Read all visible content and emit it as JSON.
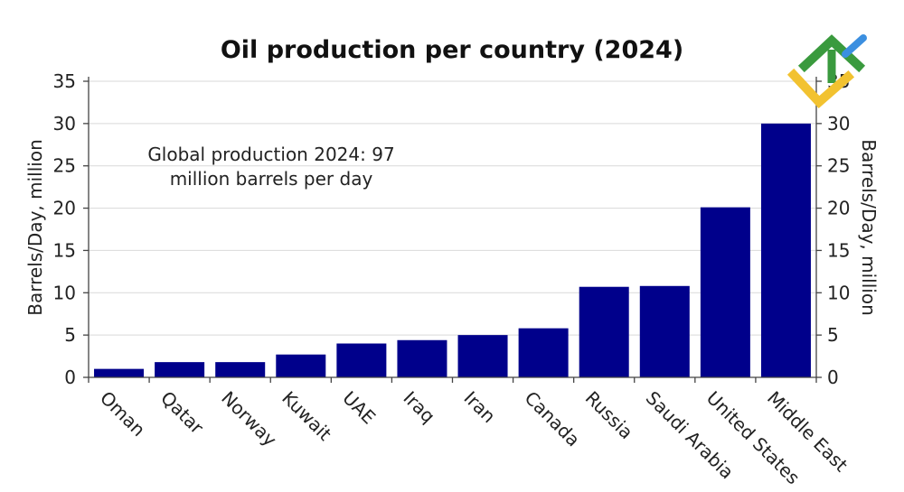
{
  "chart_data": {
    "type": "bar",
    "title": "Oil production per country (2024)",
    "ylabel": "Barrels/Day, million",
    "ylabel_right": "Barrels/Day, million",
    "categories": [
      "Oman",
      "Qatar",
      "Norway",
      "Kuwait",
      "UAE",
      "Iraq",
      "Iran",
      "Canada",
      "Russia",
      "Saudi Arabia",
      "United States",
      "Middle East"
    ],
    "values": [
      1.0,
      1.8,
      1.8,
      2.7,
      4.0,
      4.4,
      5.0,
      5.8,
      10.7,
      10.8,
      20.1,
      30.0
    ],
    "ylim": [
      0,
      35
    ],
    "yticks": [
      0,
      5,
      10,
      15,
      20,
      25,
      30,
      35
    ],
    "grid": true,
    "bar_color": "#00008b",
    "annotation": {
      "line1": "Global production 2024: 97",
      "line2": "million barrels per day"
    }
  },
  "logo": {
    "name": "brand-logo",
    "colors": [
      "#3a9a3e",
      "#f2c230",
      "#3b8fe0"
    ]
  }
}
